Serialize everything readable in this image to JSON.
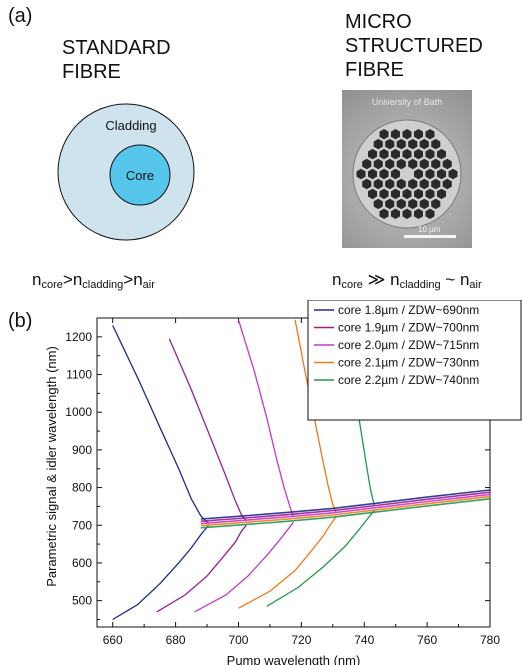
{
  "panel_a": {
    "label": "(a)",
    "standard": {
      "heading_line1": "STANDARD",
      "heading_line2": "FIBRE",
      "cladding_label": "Cladding",
      "core_label": "Core",
      "colors": {
        "cladding": "#cfe3ee",
        "core": "#56c5ec"
      }
    },
    "micro": {
      "heading_line1": "MICRO",
      "heading_line2": "STRUCTURED",
      "heading_line3": "FIBRE",
      "photo_caption": "University of Bath",
      "scale_label": "10 µm"
    },
    "relation_standard": {
      "n1": "n",
      "s1": "core",
      "op1": ">",
      "n2": "n",
      "s2": "cladding",
      "op2": ">",
      "n3": "n",
      "s3": "air"
    },
    "relation_micro": {
      "n1": "n",
      "s1": "core",
      "op1": " ≫ ",
      "n2": "n",
      "s2": "cladding",
      "op2": " ~ ",
      "n3": "n",
      "s3": "air"
    }
  },
  "panel_b": {
    "label": "(b)"
  },
  "chart_data": {
    "type": "line",
    "xlabel": "Pump wavelength (nm)",
    "ylabel": "Parametric signal & idler wavelength (nm)",
    "xlim": [
      655,
      780
    ],
    "ylim": [
      430,
      1250
    ],
    "xticks": [
      660,
      680,
      700,
      720,
      740,
      760,
      780
    ],
    "yticks": [
      500,
      600,
      700,
      800,
      900,
      1000,
      1100,
      1200
    ],
    "legend_position": "top-right",
    "series": [
      {
        "name": "core 1.8µm / ZDW~690nm",
        "color": "#1f2a8f",
        "signal_x": [
          660,
          668,
          675,
          681,
          685,
          688,
          689.5,
          690.5
        ],
        "signal_y": [
          1230,
          1090,
          960,
          850,
          770,
          725,
          712,
          705
        ],
        "idler_x": [
          660,
          668,
          675,
          681,
          685,
          688,
          689.5,
          690.5
        ],
        "idler_y": [
          450,
          490,
          545,
          600,
          640,
          675,
          690,
          700
        ]
      },
      {
        "name": "core 1.9µm / ZDW~700nm",
        "color": "#9c1d8c",
        "signal_x": [
          678,
          685,
          691,
          696,
          699,
          701,
          702.5
        ],
        "signal_y": [
          1195,
          1060,
          935,
          830,
          765,
          727,
          712
        ],
        "idler_x": [
          674,
          683,
          690,
          695,
          699,
          701,
          702.5
        ],
        "idler_y": [
          470,
          515,
          565,
          615,
          655,
          685,
          700
        ]
      },
      {
        "name": "core 2.0µm / ZDW~715nm",
        "color": "#c23ac9",
        "signal_x": [
          700,
          705,
          709,
          712,
          714.5,
          716.5,
          717.5
        ],
        "signal_y": [
          1245,
          1110,
          985,
          880,
          800,
          745,
          722
        ],
        "idler_x": [
          686,
          696,
          703,
          709,
          713,
          716,
          717.5
        ],
        "idler_y": [
          470,
          515,
          565,
          620,
          660,
          692,
          708
        ]
      },
      {
        "name": "core 2.1µm / ZDW~730nm",
        "color": "#f07a1a",
        "signal_x": [
          718,
          721,
          724,
          726.5,
          728.5,
          730,
          731
        ],
        "signal_y": [
          1245,
          1115,
          990,
          885,
          805,
          755,
          735
        ],
        "idler_x": [
          700,
          710,
          718,
          723,
          727,
          729.5,
          731
        ],
        "idler_y": [
          480,
          525,
          580,
          630,
          672,
          705,
          722
        ]
      },
      {
        "name": "core 2.2µm / ZDW~740nm",
        "color": "#1f9a4c",
        "signal_x": [
          733,
          736,
          738.5,
          740.5,
          742,
          743.2
        ],
        "signal_y": [
          1245,
          1105,
          975,
          870,
          795,
          752
        ],
        "idler_x": [
          709,
          719,
          727,
          734,
          738.5,
          741.5,
          743.2
        ],
        "idler_y": [
          485,
          535,
          590,
          645,
          690,
          722,
          740
        ]
      }
    ],
    "merged_band": {
      "x": [
        688,
        700,
        715,
        730,
        745,
        760,
        780
      ],
      "y": [
        705,
        712,
        722,
        733,
        748,
        763,
        782
      ]
    }
  }
}
